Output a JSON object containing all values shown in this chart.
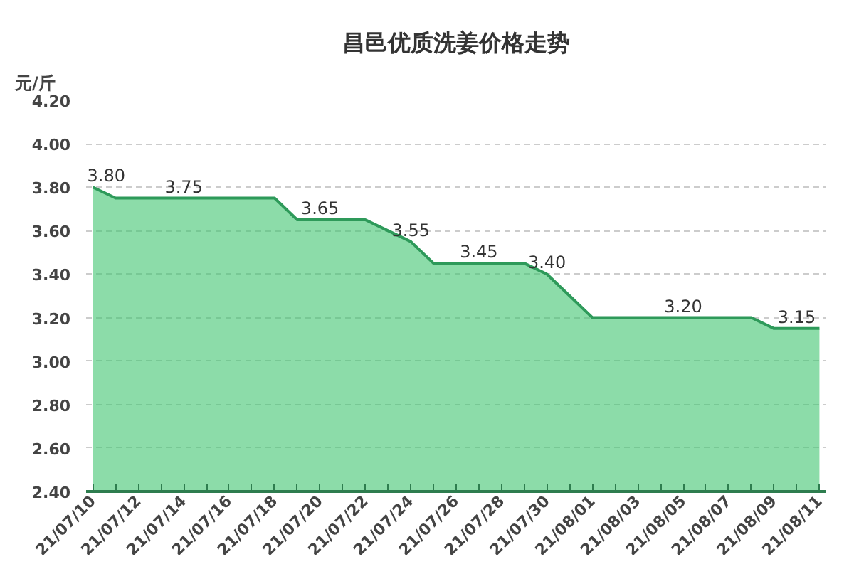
{
  "chart_data": {
    "type": "area",
    "title": "昌邑优质洗姜价格走势",
    "ylabel": "元/斤",
    "categories": [
      "21/07/10",
      null,
      "21/07/12",
      null,
      "21/07/14",
      null,
      "21/07/16",
      null,
      "21/07/18",
      null,
      "21/07/20",
      null,
      "21/07/22",
      null,
      "21/07/24",
      null,
      "21/07/26",
      null,
      "21/07/28",
      null,
      "21/07/30",
      null,
      "21/08/01",
      null,
      "21/08/03",
      null,
      "21/08/05",
      null,
      "21/08/07",
      null,
      "21/08/09",
      null,
      "21/08/11"
    ],
    "series": [
      {
        "color": "#3fc46f",
        "values": [
          3.8,
          3.75,
          3.75,
          3.75,
          3.75,
          3.75,
          3.75,
          3.75,
          3.75,
          3.65,
          3.65,
          3.65,
          3.65,
          3.6,
          3.55,
          3.45,
          3.45,
          3.45,
          3.45,
          3.45,
          3.4,
          3.3,
          3.2,
          3.2,
          3.2,
          3.2,
          3.2,
          3.2,
          3.2,
          3.2,
          3.15,
          3.15,
          3.15
        ],
        "value_labels": [
          "3.80",
          null,
          null,
          null,
          "3.75",
          null,
          null,
          null,
          null,
          null,
          "3.65",
          null,
          null,
          null,
          "3.55",
          null,
          null,
          "3.45",
          null,
          null,
          "3.40",
          null,
          null,
          null,
          null,
          null,
          "3.20",
          null,
          null,
          null,
          null,
          "3.15",
          null
        ]
      }
    ],
    "ylim": [
      2.4,
      4.2
    ],
    "yticks": [
      {
        "value": 2.4,
        "label": "2.40"
      },
      {
        "value": 2.6,
        "label": "2.60"
      },
      {
        "value": 2.8,
        "label": "2.80"
      },
      {
        "value": 3.0,
        "label": "3.00"
      },
      {
        "value": 3.2,
        "label": "3.20"
      },
      {
        "value": 3.4,
        "label": "3.40"
      },
      {
        "value": 3.6,
        "label": "3.60"
      },
      {
        "value": 3.8,
        "label": "3.80"
      },
      {
        "value": 4.0,
        "label": "4.00"
      },
      {
        "value": 4.2,
        "label": "4.20"
      }
    ],
    "grid": "y"
  }
}
